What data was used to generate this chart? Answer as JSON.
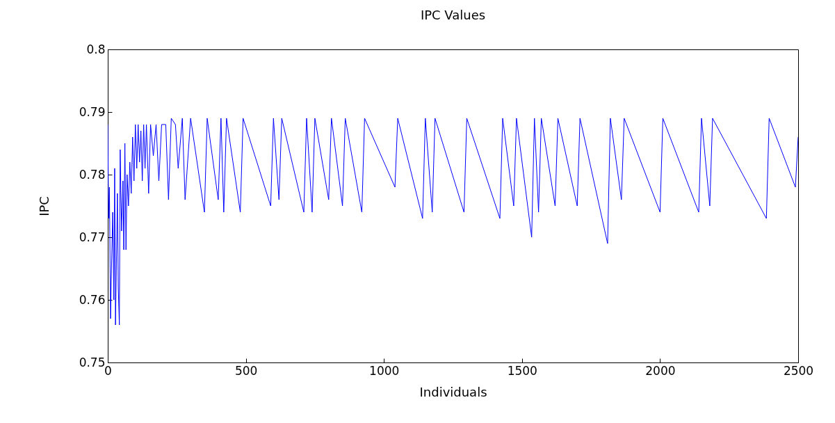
{
  "chart_data": {
    "type": "line",
    "title": "IPC Values",
    "xlabel": "Individuals",
    "ylabel": "IPC",
    "xlim": [
      0,
      2500
    ],
    "xticks": [
      0,
      500,
      1000,
      1500,
      2000,
      2500
    ],
    "ylim": [
      0.75,
      0.8
    ],
    "yticks": [
      0.75,
      0.76,
      0.77,
      0.78,
      0.79,
      0.8
    ],
    "grid": false,
    "marker": "none",
    "line_style": "solid",
    "series": [
      {
        "color": "#0000ff",
        "x": [
          0,
          3,
          6,
          10,
          14,
          18,
          22,
          25,
          28,
          32,
          35,
          38,
          42,
          45,
          50,
          55,
          58,
          62,
          66,
          70,
          75,
          80,
          85,
          90,
          95,
          100,
          105,
          110,
          115,
          120,
          125,
          130,
          135,
          140,
          148,
          155,
          165,
          175,
          185,
          195,
          210,
          220,
          230,
          245,
          255,
          270,
          280,
          300,
          350,
          360,
          400,
          410,
          420,
          430,
          480,
          490,
          590,
          600,
          620,
          630,
          710,
          720,
          740,
          750,
          800,
          810,
          850,
          860,
          920,
          930,
          1040,
          1050,
          1140,
          1150,
          1175,
          1185,
          1290,
          1300,
          1420,
          1430,
          1470,
          1480,
          1535,
          1545,
          1560,
          1570,
          1620,
          1630,
          1700,
          1710,
          1810,
          1820,
          1860,
          1870,
          2000,
          2010,
          2140,
          2150,
          2180,
          2190,
          2385,
          2395,
          2490,
          2500
        ],
        "values": [
          0.788,
          0.773,
          0.778,
          0.757,
          0.766,
          0.774,
          0.76,
          0.781,
          0.756,
          0.768,
          0.777,
          0.762,
          0.756,
          0.784,
          0.771,
          0.779,
          0.768,
          0.785,
          0.768,
          0.78,
          0.775,
          0.782,
          0.777,
          0.786,
          0.779,
          0.788,
          0.781,
          0.788,
          0.782,
          0.787,
          0.779,
          0.788,
          0.781,
          0.788,
          0.777,
          0.788,
          0.783,
          0.788,
          0.779,
          0.788,
          0.788,
          0.776,
          0.789,
          0.788,
          0.781,
          0.789,
          0.776,
          0.789,
          0.774,
          0.789,
          0.776,
          0.789,
          0.774,
          0.789,
          0.774,
          0.789,
          0.775,
          0.789,
          0.776,
          0.789,
          0.774,
          0.789,
          0.774,
          0.789,
          0.776,
          0.789,
          0.775,
          0.789,
          0.774,
          0.789,
          0.778,
          0.789,
          0.773,
          0.789,
          0.774,
          0.789,
          0.774,
          0.789,
          0.773,
          0.789,
          0.775,
          0.789,
          0.77,
          0.789,
          0.774,
          0.789,
          0.775,
          0.789,
          0.775,
          0.789,
          0.769,
          0.789,
          0.776,
          0.789,
          0.774,
          0.789,
          0.774,
          0.789,
          0.775,
          0.789,
          0.773,
          0.789,
          0.778,
          0.786
        ]
      }
    ]
  }
}
